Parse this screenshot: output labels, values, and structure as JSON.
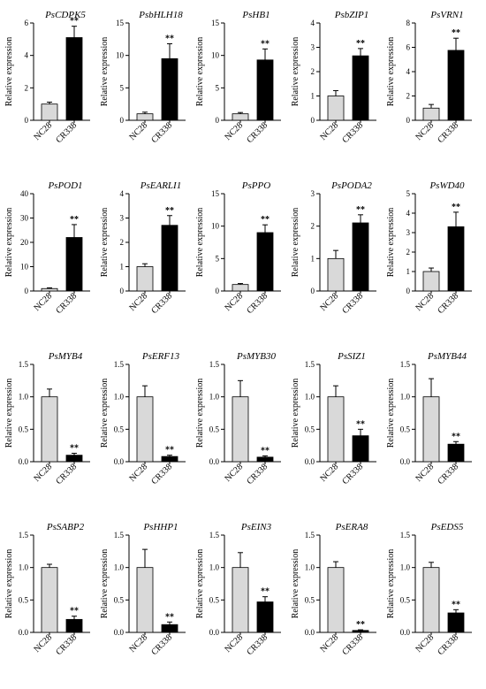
{
  "chart_data": [
    {
      "type": "bar",
      "title": "PsCDPK5",
      "ylabel": "Relative expression",
      "categories": [
        "NC28",
        "CR338"
      ],
      "values": [
        1.0,
        5.1
      ],
      "errors": [
        0.12,
        0.7
      ],
      "significance": [
        "",
        "**"
      ],
      "ylim": [
        0,
        6
      ],
      "yticks": [
        "0",
        "2",
        "4",
        "6"
      ]
    },
    {
      "type": "bar",
      "title": "PsbHLH18",
      "ylabel": "Relative expression",
      "categories": [
        "NC28",
        "CR338"
      ],
      "values": [
        1.0,
        9.5
      ],
      "errors": [
        0.25,
        2.3
      ],
      "significance": [
        "",
        "**"
      ],
      "ylim": [
        0,
        15
      ],
      "yticks": [
        "0",
        "5",
        "10",
        "15"
      ]
    },
    {
      "type": "bar",
      "title": "PsHB1",
      "ylabel": "Relative expression",
      "categories": [
        "NC28",
        "CR338"
      ],
      "values": [
        1.0,
        9.3
      ],
      "errors": [
        0.2,
        1.7
      ],
      "significance": [
        "",
        "**"
      ],
      "ylim": [
        0,
        15
      ],
      "yticks": [
        "0",
        "5",
        "10",
        "15"
      ]
    },
    {
      "type": "bar",
      "title": "PsbZIP1",
      "ylabel": "Relative expression",
      "categories": [
        "NC28",
        "CR338"
      ],
      "values": [
        1.0,
        2.65
      ],
      "errors": [
        0.22,
        0.3
      ],
      "significance": [
        "",
        "**"
      ],
      "ylim": [
        0,
        4
      ],
      "yticks": [
        "0",
        "1",
        "2",
        "3",
        "4"
      ]
    },
    {
      "type": "bar",
      "title": "PsVRN1",
      "ylabel": "Relative expression",
      "categories": [
        "NC28",
        "CR338"
      ],
      "values": [
        1.0,
        5.75
      ],
      "errors": [
        0.3,
        1.0
      ],
      "significance": [
        "",
        "**"
      ],
      "ylim": [
        0,
        8
      ],
      "yticks": [
        "0",
        "2",
        "4",
        "6",
        "8"
      ]
    },
    {
      "type": "bar",
      "title": "PsPOD1",
      "ylabel": "Relative expression",
      "categories": [
        "NC28",
        "CR338"
      ],
      "values": [
        1.0,
        22
      ],
      "errors": [
        0.3,
        5.3
      ],
      "significance": [
        "",
        "**"
      ],
      "ylim": [
        0,
        40
      ],
      "yticks": [
        "0",
        "10",
        "20",
        "30",
        "40"
      ]
    },
    {
      "type": "bar",
      "title": "PsEARLI1",
      "ylabel": "Relative expression",
      "categories": [
        "NC28",
        "CR338"
      ],
      "values": [
        1.0,
        2.7
      ],
      "errors": [
        0.12,
        0.4
      ],
      "significance": [
        "",
        "**"
      ],
      "ylim": [
        0,
        4
      ],
      "yticks": [
        "0",
        "1",
        "2",
        "3",
        "4"
      ]
    },
    {
      "type": "bar",
      "title": "PsPPO",
      "ylabel": "Relative expression",
      "categories": [
        "NC28",
        "CR338"
      ],
      "values": [
        1.0,
        9.0
      ],
      "errors": [
        0.15,
        1.2
      ],
      "significance": [
        "",
        "**"
      ],
      "ylim": [
        0,
        15
      ],
      "yticks": [
        "0",
        "5",
        "10",
        "15"
      ]
    },
    {
      "type": "bar",
      "title": "PsPODA2",
      "ylabel": "Relative expression",
      "categories": [
        "NC28",
        "CR338"
      ],
      "values": [
        1.0,
        2.1
      ],
      "errors": [
        0.25,
        0.25
      ],
      "significance": [
        "",
        "**"
      ],
      "ylim": [
        0,
        3
      ],
      "yticks": [
        "0",
        "1",
        "2",
        "3"
      ]
    },
    {
      "type": "bar",
      "title": "PsWD40",
      "ylabel": "Relative expression",
      "categories": [
        "NC28",
        "CR338"
      ],
      "values": [
        1.0,
        3.3
      ],
      "errors": [
        0.18,
        0.75
      ],
      "significance": [
        "",
        "**"
      ],
      "ylim": [
        0,
        5
      ],
      "yticks": [
        "0",
        "1",
        "2",
        "3",
        "4",
        "5"
      ]
    },
    {
      "type": "bar",
      "title": "PsMYB4",
      "ylabel": "Relative expression",
      "categories": [
        "NC28",
        "CR338"
      ],
      "values": [
        1.0,
        0.1
      ],
      "errors": [
        0.12,
        0.03
      ],
      "significance": [
        "",
        "**"
      ],
      "ylim": [
        0,
        1.5
      ],
      "yticks": [
        "0.0",
        "0.5",
        "1.0",
        "1.5"
      ]
    },
    {
      "type": "bar",
      "title": "PsERF13",
      "ylabel": "Relative expression",
      "categories": [
        "NC28",
        "CR338"
      ],
      "values": [
        1.0,
        0.08
      ],
      "errors": [
        0.17,
        0.02
      ],
      "significance": [
        "",
        "**"
      ],
      "ylim": [
        0,
        1.5
      ],
      "yticks": [
        "0.0",
        "0.5",
        "1.0",
        "1.5"
      ]
    },
    {
      "type": "bar",
      "title": "PsMYB30",
      "ylabel": "Relative expression",
      "categories": [
        "NC28",
        "CR338"
      ],
      "values": [
        1.0,
        0.07
      ],
      "errors": [
        0.25,
        0.02
      ],
      "significance": [
        "",
        "**"
      ],
      "ylim": [
        0,
        1.5
      ],
      "yticks": [
        "0.0",
        "0.5",
        "1.0",
        "1.5"
      ]
    },
    {
      "type": "bar",
      "title": "PsSIZ1",
      "ylabel": "Relative expression",
      "categories": [
        "NC28",
        "CR338"
      ],
      "values": [
        1.0,
        0.4
      ],
      "errors": [
        0.17,
        0.1
      ],
      "significance": [
        "",
        "**"
      ],
      "ylim": [
        0,
        1.5
      ],
      "yticks": [
        "0.0",
        "0.5",
        "1.0",
        "1.5"
      ]
    },
    {
      "type": "bar",
      "title": "PsMYB44",
      "ylabel": "Relative expression",
      "categories": [
        "NC28",
        "CR338"
      ],
      "values": [
        1.0,
        0.27
      ],
      "errors": [
        0.28,
        0.04
      ],
      "significance": [
        "",
        "**"
      ],
      "ylim": [
        0,
        1.5
      ],
      "yticks": [
        "0.0",
        "0.5",
        "1.0",
        "1.5"
      ]
    },
    {
      "type": "bar",
      "title": "PsSABP2",
      "ylabel": "Relative expression",
      "categories": [
        "NC28",
        "CR338"
      ],
      "values": [
        1.0,
        0.2
      ],
      "errors": [
        0.05,
        0.05
      ],
      "significance": [
        "",
        "**"
      ],
      "ylim": [
        0,
        1.5
      ],
      "yticks": [
        "0.0",
        "0.5",
        "1.0",
        "1.5"
      ]
    },
    {
      "type": "bar",
      "title": "PsHHP1",
      "ylabel": "Relative expression",
      "categories": [
        "NC28",
        "CR338"
      ],
      "values": [
        1.0,
        0.12
      ],
      "errors": [
        0.28,
        0.04
      ],
      "significance": [
        "",
        "**"
      ],
      "ylim": [
        0,
        1.5
      ],
      "yticks": [
        "0.0",
        "0.5",
        "1.0",
        "1.5"
      ]
    },
    {
      "type": "bar",
      "title": "PsEIN3",
      "ylabel": "Relative expression",
      "categories": [
        "NC28",
        "CR338"
      ],
      "values": [
        1.0,
        0.47
      ],
      "errors": [
        0.23,
        0.08
      ],
      "significance": [
        "",
        "**"
      ],
      "ylim": [
        0,
        1.5
      ],
      "yticks": [
        "0.0",
        "0.5",
        "1.0",
        "1.5"
      ]
    },
    {
      "type": "bar",
      "title": "PsERA8",
      "ylabel": "Relative expression",
      "categories": [
        "NC28",
        "CR338"
      ],
      "values": [
        1.0,
        0.03
      ],
      "errors": [
        0.09,
        0.01
      ],
      "significance": [
        "",
        "**"
      ],
      "ylim": [
        0,
        1.5
      ],
      "yticks": [
        "0.0",
        "0.5",
        "1.0",
        "1.5"
      ]
    },
    {
      "type": "bar",
      "title": "PsEDS5",
      "ylabel": "Relative expression",
      "categories": [
        "NC28",
        "CR338"
      ],
      "values": [
        1.0,
        0.3
      ],
      "errors": [
        0.08,
        0.05
      ],
      "significance": [
        "",
        "**"
      ],
      "ylim": [
        0,
        1.5
      ],
      "yticks": [
        "0.0",
        "0.5",
        "1.0",
        "1.5"
      ]
    }
  ],
  "colors": {
    "nc28_bar": "#d9d9d9",
    "cr338_bar": "#000000",
    "axis": "#000000"
  }
}
